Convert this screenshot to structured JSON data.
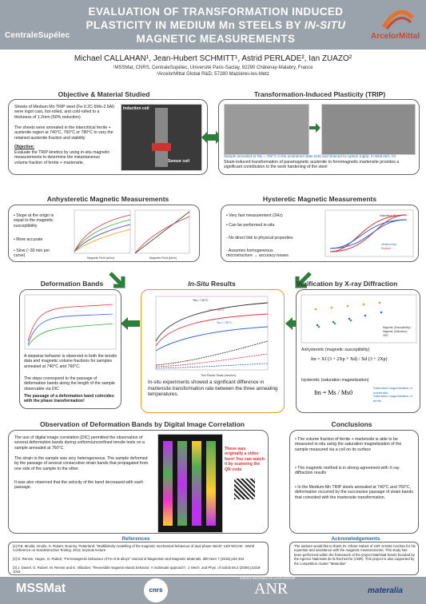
{
  "header": {
    "title_line1": "EVALUATION OF TRANSFORMATION INDUCED",
    "title_line2": "PLASTICITY IN MEDIUM Mn STEELS BY",
    "title_italic": "IN-SITU",
    "title_line3": "MAGNETIC MEASUREMENTS",
    "logo_left": "CentraleSupélec",
    "logo_right": "ArcelorMittal"
  },
  "authors": "Michael CALLAHAN¹, Jean-Hubert SCHMITT¹, Astrid PERLADE², Ian ZUAZO²",
  "affiliations": [
    "¹MSSMat, CNRS, CentraleSupélec, Université Paris-Saclay, 92290 Châtenay-Malabry, France",
    "²ArcelorMittal Global R&D, 57280 Maizières-les-Metz"
  ],
  "objective": {
    "title": "Objective & Material Studied",
    "p1": "Sheets of Medium Mn TRIP steel (Fe-0.2C-5Mn-2.5Al) were ingot cast, hot-rolled, and cold-rolled to a thickness of 1.2mm (50% reduction)",
    "p2": "The sheets were annealed in the intercritical ferrite + austenite region at 740°C, 760°C or 780°C to vary the retained austenite fraction and stability",
    "obj_label": "Objective:",
    "p3": "Evaluate the TRIP kinetics by using in-situ magnetic measurements to determine the instantaneous volume fraction of ferrite + martensite.",
    "fig_label1": "Induction coil",
    "fig_label2": "Sensor coil"
  },
  "trip": {
    "title": "Transformation-Induced Plasticity (TRIP)",
    "caption": "Sample annealed at Tan = 780°C in the unstrained state (left) and strained to rupture (right). In Nital etch, for",
    "desc": "Strain-induced transformation of paramagnetic austenite to ferromagnetic martensite provides a significant contribution to the work hardening of the steel"
  },
  "anhysteretic": {
    "title": "Anhysteretic Magnetic Measurements",
    "bullets": [
      "Slope at the origin is equal to the magnetic susceptibility",
      "More accurate",
      "Slow (~30 min per curve)"
    ],
    "xlabel": "Magnetic Field (kA/m)",
    "ylabel": "Magnetization (MA/m)"
  },
  "hysteretic": {
    "title": "Hysteretic Magnetic Measurements",
    "bullets": [
      "Very fast measurement (2Hz)",
      "Can be performed in-situ",
      "No direct link to physical properties",
      "Assumes homogeneous microstructure → accuracy issues"
    ],
    "legend": [
      "Saturation M",
      "Undeformed",
      "Rupture"
    ]
  },
  "bands": {
    "title": "Deformation Bands",
    "p1": "A stepwise behavior is observed in both the tensile data and magnetic volume fractions for samples annealed at 740°C and 760°C.",
    "p2": "The steps correspond to the passage of deformation bands along the length of the sample observable via DIC",
    "p3": "The passage of a deformation band coincides with the phase transformation!"
  },
  "insitu": {
    "title_italic": "In-Situ",
    "title_rest": " Results",
    "series_labels": [
      "Tan = 740°C",
      "Tan = 760°C",
      "Tan = 780°C",
      "Tan = 740°C",
      "Tan = 760°C",
      "Tan = 780°C"
    ],
    "xlabel": "True Plastic Strain (mm/mm)",
    "ylabel": "True Stress (MPa)",
    "y2label": "Volume Fraction Ferrite+Martensite",
    "text": "In-situ experiments showed a significant difference in martensite transformation rate between the three annealing temperatures."
  },
  "xray": {
    "title": "Verification by X-ray Diffraction",
    "legend": [
      "Magnetic (Susceptibility)",
      "Magnetic (Saturation)",
      "XRD"
    ],
    "label1": "Anhysteretic (magnetic susceptibility)",
    "label2": "Hysteretic (saturation magnetization)",
    "ann1": "susceptibility of ferrite/martensite",
    "ann2": "Volume fraction ferrite/martensite",
    "ann3": "Saturation magnetization of martensite",
    "ann4": "Saturation magnetization of ferrite",
    "formula1": "fm = Xf (3 + 2Xp + Xd) / Xd (3 + 2Xp)",
    "formula2": "fm = Ms / Ms0"
  },
  "dic": {
    "title": "Observation of Deformation Bands by Digital Image Correlation",
    "p1": "The use of digital image correlation (DIC) permitted the observation of several deformation bands during uniform/unconfined tensile tests on a sample annealed at 760°C.",
    "p2": "The strain in the sample was very heterogeneous. The sample deformed by the passage of several consecutive strain bands that propagated from one side of the sample to the other.",
    "p3": "It was also observed that the velocity of the band decreased with each passage.",
    "note": "These was originally a video here! You can watch it by scanning the QR code"
  },
  "conclusions": {
    "title": "Conclusions",
    "bullets": [
      "The volume fraction of ferrite + martensite is able to be measured in-situ using the saturation magnetization of the sample measured via a coil on its surface",
      "The magnetic method is in strong agreement with X-ray diffraction results",
      "In the Medium-Mn TRIP steels annealed at 740°C and 760°C, deformation occurred by the successive passage of strain bands that coincided with the martensite transformation."
    ]
  },
  "references": {
    "title": "References",
    "items": [
      "[1] P.B. Mcalla, Vinullo, S. Rubert, Nourmy, Petterland: \"Multifidesity modelling of the magnetic mechanical behaviour of dual phase steels\" 14th WCCM - World Conference on Nondestructive Testing. 2012, keynote lecture",
      "[2] O. Rennin, Hugen, O. Rubert, \"Ferromagnetic behaviour of Fe-Al-B alloys\" Journal of Magnetism and Magnetic Materials, 390 Nom 7 (2015) p34-434",
      "[3] J. Daniel, O. Rubert, M. Rennie and E. Villarden, \"Reversible magneto-elastic behavior: A multiscale approach\", J. Mech. and Phys. of Solids 56.3 (2008) p1018-1042"
    ]
  },
  "ack": {
    "title": "Acknowledgements",
    "text": "The authors would like to thank Dr. Olivier Hubert of LMT at ENS Cachan for his expertise and assistance with the magnetic measurements. This study has been performed within the framework of the project MatériaB Steels founded by the Agence Nationale de la Recherche (ANR). This project is also supported by the competition cluster \"Materalia\""
  },
  "footer_logos": [
    "MSSMat",
    "cnrs",
    "ANR",
    "materalia"
  ],
  "footer_anr_sub": "AGENCE NATIONALE DE LA RECHERCHE"
}
